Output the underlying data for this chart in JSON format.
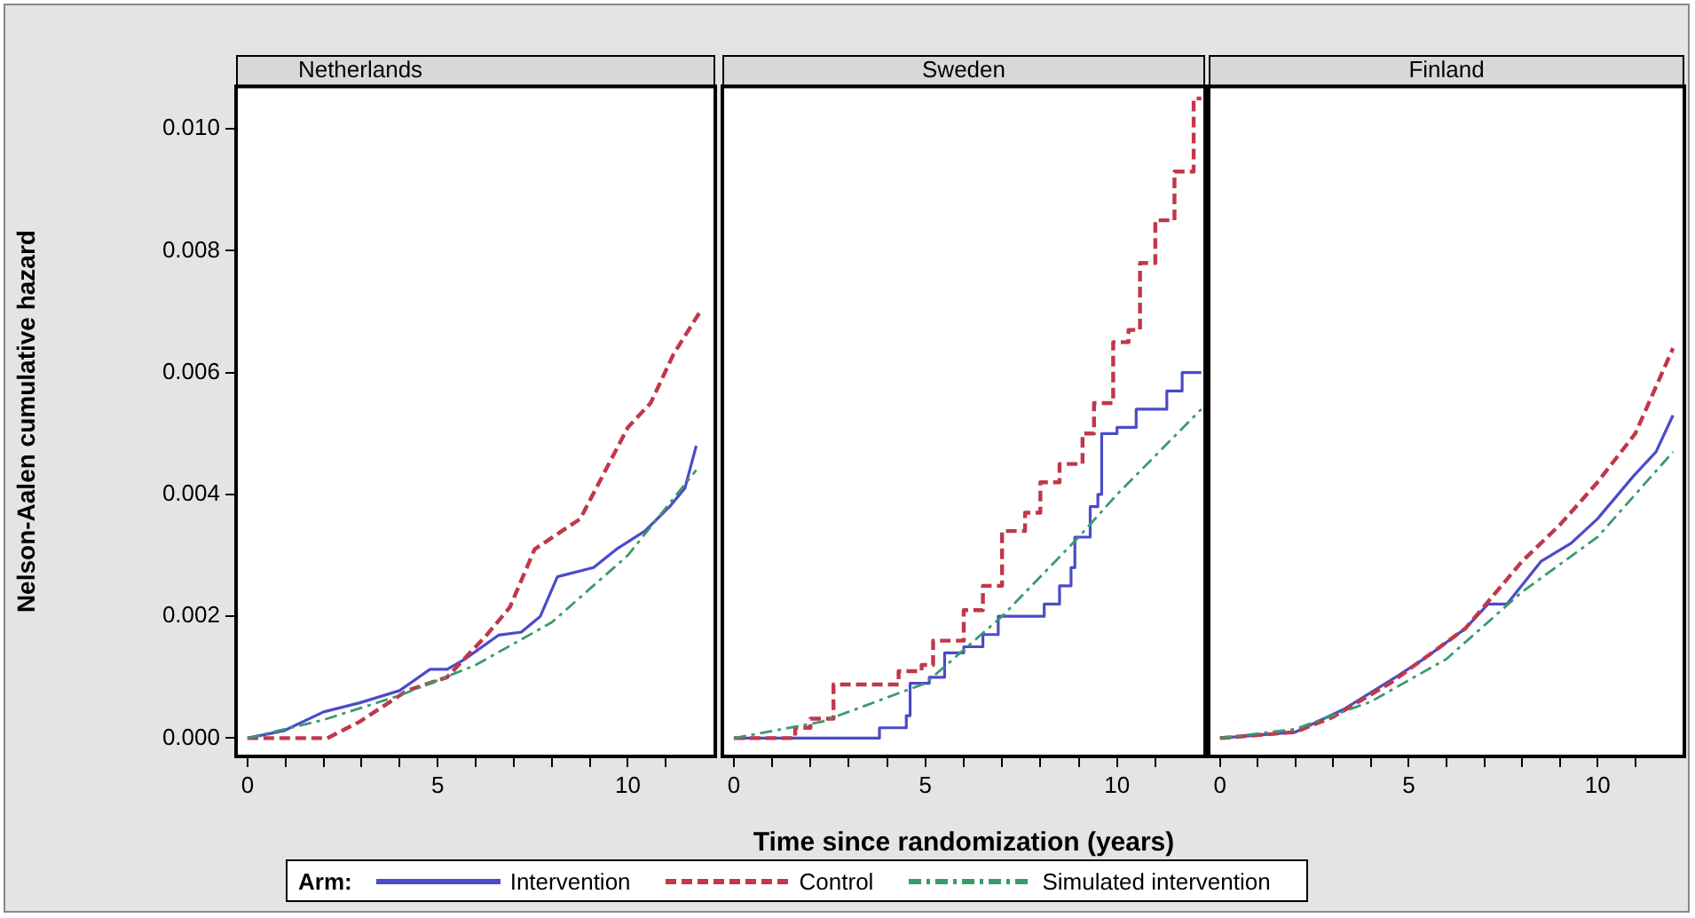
{
  "chart_data": [
    {
      "type": "line",
      "title": "Netherlands",
      "ylabel": "Nelson-Aalen cumulative hazard",
      "xlim": [
        -0.3,
        12.3
      ],
      "ylim": [
        -0.0003,
        0.0107
      ],
      "xticks": [
        0,
        {
          "value": 1,
          "label": null
        },
        {
          "value": 2,
          "label": null
        },
        {
          "value": 3,
          "label": null
        },
        {
          "value": 4,
          "label": null
        },
        5,
        {
          "value": 6,
          "label": null
        },
        {
          "value": 7,
          "label": null
        },
        {
          "value": 8,
          "label": null
        },
        {
          "value": 9,
          "label": null
        },
        10,
        {
          "value": 11,
          "label": null
        }
      ],
      "yticks": [
        {
          "value": 0,
          "label": "0.000"
        },
        {
          "value": 0.002,
          "label": "0.002"
        },
        {
          "value": 0.004,
          "label": "0.004"
        },
        {
          "value": 0.006,
          "label": "0.006"
        },
        {
          "value": 0.008,
          "label": "0.008"
        },
        {
          "value": 0.01,
          "label": "0.010"
        }
      ],
      "grid": false,
      "legend": false,
      "series": [
        {
          "color": "#4b4bc8",
          "line_style": "solid",
          "x": [
            0,
            0.95,
            2.0,
            2.95,
            4.0,
            4.8,
            5.25,
            5.7,
            6.6,
            7.2,
            7.7,
            8.15,
            9.1,
            9.7,
            10.45,
            11.1,
            11.5,
            11.8
          ],
          "values": [
            0,
            0.00012,
            0.00043,
            0.00058,
            0.00078,
            0.00113,
            0.00113,
            0.00129,
            0.00169,
            0.00174,
            0.002,
            0.00265,
            0.0028,
            0.0031,
            0.0034,
            0.0038,
            0.0041,
            0.0048
          ]
        },
        {
          "color": "#c0384b",
          "line_style": "dashed",
          "x": [
            0,
            2.1,
            2.95,
            4.2,
            5.25,
            6.3,
            6.9,
            7.55,
            8.75,
            10,
            10.6,
            11.2,
            11.9
          ],
          "values": [
            0,
            0,
            0.00027,
            0.00078,
            0.001,
            0.0017,
            0.00215,
            0.0031,
            0.0036,
            0.0051,
            0.0055,
            0.0063,
            0.007
          ]
        },
        {
          "color": "#3a9a6e",
          "line_style": "dashdot",
          "x": [
            0,
            2,
            4,
            6,
            8,
            10,
            11.8
          ],
          "values": [
            0,
            0.0003,
            0.0007,
            0.0012,
            0.0019,
            0.003,
            0.0044
          ]
        }
      ]
    },
    {
      "type": "line",
      "title": "Sweden",
      "xlabel": "Time since randomization (years)",
      "legend_title": "Arm:",
      "xlim": [
        -0.3,
        12.3
      ],
      "ylim": [
        -0.0003,
        0.0107
      ],
      "tick_labels": "x",
      "xticks": [
        0,
        {
          "value": 1,
          "label": null
        },
        {
          "value": 2,
          "label": null
        },
        {
          "value": 3,
          "label": null
        },
        {
          "value": 4,
          "label": null
        },
        5,
        {
          "value": 6,
          "label": null
        },
        {
          "value": 7,
          "label": null
        },
        {
          "value": 8,
          "label": null
        },
        {
          "value": 9,
          "label": null
        },
        10,
        {
          "value": 11,
          "label": null
        }
      ],
      "grid": false,
      "legend": "bottom",
      "series": [
        {
          "name": "Intervention",
          "type": "step",
          "color": "#4b4bc8",
          "line_style": "solid",
          "x": [
            0,
            3.8,
            4.5,
            4.6,
            5.1,
            5.5,
            6,
            6.5,
            6.9,
            8.1,
            8.5,
            8.8,
            8.9,
            9.3,
            9.5,
            9.6,
            10,
            10.5,
            11.3,
            11.7,
            12.2
          ],
          "values": [
            0,
            0.00017,
            0.00037,
            0.0009,
            0.001,
            0.0014,
            0.0015,
            0.0017,
            0.002,
            0.0022,
            0.0025,
            0.0028,
            0.0033,
            0.0038,
            0.004,
            0.005,
            0.0051,
            0.0054,
            0.0057,
            0.006,
            0.006
          ]
        },
        {
          "name": "Control",
          "type": "step",
          "color": "#c0384b",
          "line_style": "dashed",
          "x": [
            0,
            1.6,
            2.0,
            2.6,
            4.3,
            4.9,
            5.2,
            6,
            6.5,
            7.0,
            7.6,
            8,
            8.5,
            9.1,
            9.4,
            9.9,
            10.3,
            10.6,
            11.0,
            11.5,
            12.0,
            12.2
          ],
          "values": [
            0,
            0.00017,
            0.00032,
            0.00088,
            0.0011,
            0.0012,
            0.0016,
            0.0021,
            0.0025,
            0.0034,
            0.0037,
            0.0042,
            0.0045,
            0.005,
            0.0055,
            0.0065,
            0.0067,
            0.0078,
            0.0085,
            0.0093,
            0.0105,
            0.0105
          ]
        },
        {
          "name": "Simulated intervention",
          "color": "#3a9a6e",
          "line_style": "dashdot",
          "x": [
            0,
            2.3,
            5,
            7,
            9,
            10,
            12.2
          ],
          "values": [
            0,
            0.00027,
            0.0009,
            0.002,
            0.0033,
            0.004,
            0.0054
          ]
        }
      ]
    },
    {
      "type": "line",
      "title": "Finland",
      "xlim": [
        -0.3,
        12.3
      ],
      "ylim": [
        -0.0003,
        0.0107
      ],
      "tick_labels": "x",
      "xticks": [
        0,
        {
          "value": 1,
          "label": null
        },
        {
          "value": 2,
          "label": null
        },
        {
          "value": 3,
          "label": null
        },
        {
          "value": 4,
          "label": null
        },
        5,
        {
          "value": 6,
          "label": null
        },
        {
          "value": 7,
          "label": null
        },
        {
          "value": 8,
          "label": null
        },
        {
          "value": 9,
          "label": null
        },
        10,
        {
          "value": 11,
          "label": null
        }
      ],
      "grid": false,
      "legend": false,
      "series": [
        {
          "color": "#4b4bc8",
          "line_style": "solid",
          "x": [
            0,
            2,
            3.3,
            4.65,
            5.4,
            6.5,
            7.1,
            7.6,
            8.5,
            9.3,
            10,
            10.95,
            11.55,
            12
          ],
          "values": [
            0,
            0.0001,
            0.00048,
            0.001,
            0.0013,
            0.0018,
            0.0022,
            0.0022,
            0.0029,
            0.0032,
            0.0036,
            0.0043,
            0.0047,
            0.0053
          ]
        },
        {
          "color": "#c0384b",
          "line_style": "dashed",
          "x": [
            0,
            2,
            3,
            4.5,
            6.5,
            8,
            9,
            10,
            11,
            12
          ],
          "values": [
            0,
            0.0001,
            0.00035,
            0.0009,
            0.0018,
            0.0029,
            0.0035,
            0.0042,
            0.005,
            0.0064
          ]
        },
        {
          "color": "#3a9a6e",
          "line_style": "dashdot",
          "x": [
            0,
            2,
            4,
            6,
            8,
            10,
            12
          ],
          "values": [
            0,
            0.00015,
            0.0006,
            0.0013,
            0.0024,
            0.0033,
            0.0047
          ]
        }
      ]
    }
  ]
}
